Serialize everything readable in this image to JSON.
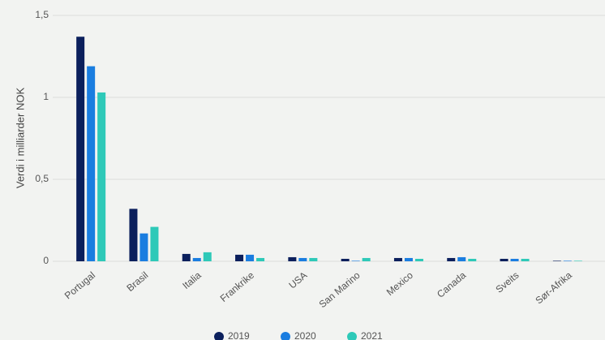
{
  "chart_data": {
    "type": "bar",
    "y_axis_label": "Verdi i milliarder NOK",
    "categories": [
      "Portugal",
      "Brasil",
      "Italia",
      "Frankrike",
      "USA",
      "San Marino",
      "Mexico",
      "Canada",
      "Sveits",
      "Sør-Afrika"
    ],
    "series": [
      {
        "name": "2019",
        "color": "#0b1f5c",
        "values": [
          1.37,
          0.32,
          0.045,
          0.04,
          0.025,
          0.015,
          0.02,
          0.02,
          0.015,
          0.003
        ]
      },
      {
        "name": "2020",
        "color": "#1a7de0",
        "values": [
          1.19,
          0.17,
          0.02,
          0.04,
          0.02,
          0.003,
          0.02,
          0.025,
          0.015,
          0.003
        ]
      },
      {
        "name": "2021",
        "color": "#2ec9b8",
        "values": [
          1.03,
          0.21,
          0.055,
          0.02,
          0.02,
          0.02,
          0.015,
          0.015,
          0.015,
          0.003
        ]
      }
    ],
    "ylim": [
      0,
      1.5
    ],
    "yticks": [
      0,
      {
        "value": 0.5,
        "label": "0,5"
      },
      1,
      {
        "value": 1.5,
        "label": "1,5"
      }
    ],
    "grid": true
  }
}
